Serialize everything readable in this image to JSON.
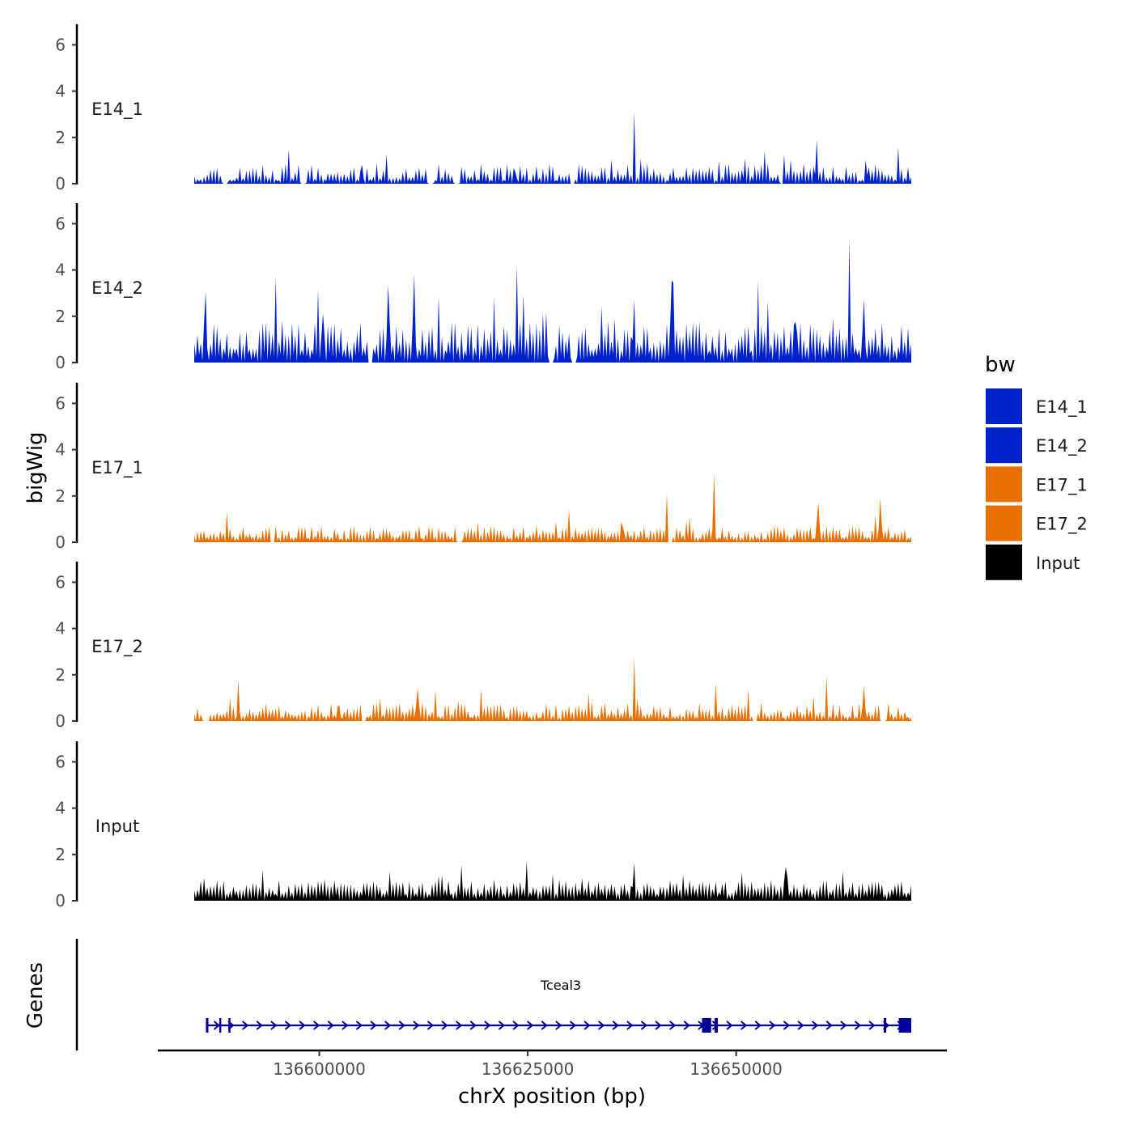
{
  "chart_data": {
    "type": "area",
    "description_axis": {
      "xlabel": "chrX position (bp)",
      "ylabel": "bigWig",
      "genes_label": "Genes"
    },
    "x_range": [
      136585000,
      136671000
    ],
    "x_ticks": [
      136600000,
      136625000,
      136650000
    ],
    "x_tick_labels": [
      "136600000",
      "136625000",
      "136650000"
    ],
    "y_range": [
      0,
      6.8
    ],
    "y_ticks": [
      0,
      2,
      4,
      6
    ],
    "y_tick_labels": [
      "0",
      "2",
      "4",
      "6"
    ],
    "tracks": [
      {
        "name": "E14_1",
        "color": "#0022cc",
        "seed": 11,
        "base": 0.35,
        "noise": 0.75,
        "spike_prob": 0.07,
        "spike_amp": 1.1,
        "peaks": [
          [
            136605200,
            1.5
          ],
          [
            136623400,
            1.7
          ],
          [
            136637800,
            3.8
          ],
          [
            136651000,
            1.9
          ],
          [
            136655800,
            1.8
          ],
          [
            136659600,
            3.3
          ],
          [
            136665600,
            2.0
          ]
        ],
        "gaps": [
          [
            136588400,
            136589000
          ],
          [
            136597800,
            136598400
          ],
          [
            136613100,
            136613600
          ],
          [
            136616200,
            136616700
          ],
          [
            136630000,
            136630600
          ],
          [
            136655200,
            136655700
          ]
        ]
      },
      {
        "name": "E14_2",
        "color": "#0022cc",
        "seed": 23,
        "base": 1.3,
        "noise": 1.3,
        "spike_prob": 0.1,
        "spike_amp": 2.0,
        "peaks": [
          [
            136586400,
            3.9
          ],
          [
            136600500,
            3.5
          ],
          [
            136608300,
            4.6
          ],
          [
            136611400,
            4.2
          ],
          [
            136623700,
            4.2
          ],
          [
            136637700,
            5.3
          ],
          [
            136642300,
            4.5
          ],
          [
            136657200,
            3.6
          ],
          [
            136663600,
            6.5
          ],
          [
            136665300,
            3.5
          ]
        ],
        "gaps": [
          [
            136605800,
            136606400
          ],
          [
            136627500,
            136628100
          ],
          [
            136630300,
            136630900
          ]
        ]
      },
      {
        "name": "E17_1",
        "color": "#e87000",
        "seed": 37,
        "base": 0.45,
        "noise": 0.55,
        "spike_prob": 0.06,
        "spike_amp": 0.9,
        "peaks": [
          [
            136636300,
            2.2
          ],
          [
            136641700,
            2.4
          ],
          [
            136647300,
            4.5
          ],
          [
            136659900,
            2.4
          ],
          [
            136667300,
            2.1
          ]
        ],
        "gaps": [
          [
            136594000,
            136594600
          ],
          [
            136616600,
            136617200
          ],
          [
            136641800,
            136642400
          ]
        ]
      },
      {
        "name": "E17_2",
        "color": "#e87000",
        "seed": 53,
        "base": 0.4,
        "noise": 0.65,
        "spike_prob": 0.07,
        "spike_amp": 1.0,
        "peaks": [
          [
            136590300,
            2.1
          ],
          [
            136602300,
            1.9
          ],
          [
            136611800,
            1.7
          ],
          [
            136637800,
            3.4
          ],
          [
            136647600,
            2.6
          ],
          [
            136660800,
            2.6
          ],
          [
            136665400,
            2.8
          ]
        ],
        "gaps": [
          [
            136586000,
            136586900
          ],
          [
            136605000,
            136605600
          ],
          [
            136652000,
            136652600
          ],
          [
            136667300,
            136667900
          ]
        ]
      },
      {
        "name": "Input",
        "color": "#000000",
        "seed": 71,
        "base": 0.75,
        "noise": 0.6,
        "spike_prob": 0.06,
        "spike_amp": 0.8,
        "peaks": [
          [
            136617000,
            2.4
          ],
          [
            136637700,
            3.2
          ],
          [
            136624900,
            2.1
          ],
          [
            136655900,
            2.2
          ]
        ],
        "gaps": []
      }
    ],
    "legend": {
      "title": "bw",
      "entries": [
        {
          "label": "E14_1",
          "color": "#0022cc"
        },
        {
          "label": "E14_2",
          "color": "#0022cc"
        },
        {
          "label": "E17_1",
          "color": "#e87000"
        },
        {
          "label": "E17_2",
          "color": "#e87000"
        },
        {
          "label": "Input",
          "color": "#000000"
        }
      ]
    },
    "gene": {
      "name": "Tceal3",
      "start": 136586500,
      "end": 136671000,
      "strand": "+",
      "color": "#000099",
      "exons": [
        [
          136586400,
          136586700
        ],
        [
          136588000,
          136588200
        ],
        [
          136589100,
          136589300
        ],
        [
          136645900,
          136647000
        ],
        [
          136647400,
          136647800
        ],
        [
          136667700,
          136668000
        ],
        [
          136669500,
          136671000
        ]
      ]
    }
  }
}
